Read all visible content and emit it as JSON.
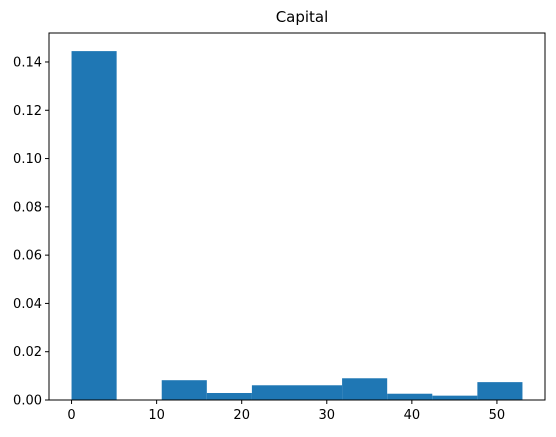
{
  "chart_data": {
    "type": "bar",
    "title": "Capital",
    "xlabel": "",
    "ylabel": "",
    "bar_color": "#1f77b4",
    "grid": false,
    "legend": "none",
    "xlim": [
      -2.65,
      55.65
    ],
    "ylim": [
      0,
      0.152
    ],
    "x_ticks": [
      0,
      10,
      20,
      30,
      40,
      50
    ],
    "y_ticks": [
      0.0,
      0.02,
      0.04,
      0.06,
      0.08,
      0.1,
      0.12,
      0.14
    ],
    "y_tick_format_decimals": 2,
    "bins": [
      {
        "start": 0.0,
        "end": 5.3,
        "value": 0.1445
      },
      {
        "start": 5.3,
        "end": 10.6,
        "value": 0.0
      },
      {
        "start": 10.6,
        "end": 15.9,
        "value": 0.0082
      },
      {
        "start": 15.9,
        "end": 21.2,
        "value": 0.0029
      },
      {
        "start": 21.2,
        "end": 26.5,
        "value": 0.0061
      },
      {
        "start": 26.5,
        "end": 31.8,
        "value": 0.0061
      },
      {
        "start": 31.8,
        "end": 37.1,
        "value": 0.009
      },
      {
        "start": 37.1,
        "end": 42.4,
        "value": 0.0026
      },
      {
        "start": 42.4,
        "end": 47.7,
        "value": 0.0018
      },
      {
        "start": 47.7,
        "end": 53.0,
        "value": 0.0074
      }
    ]
  }
}
